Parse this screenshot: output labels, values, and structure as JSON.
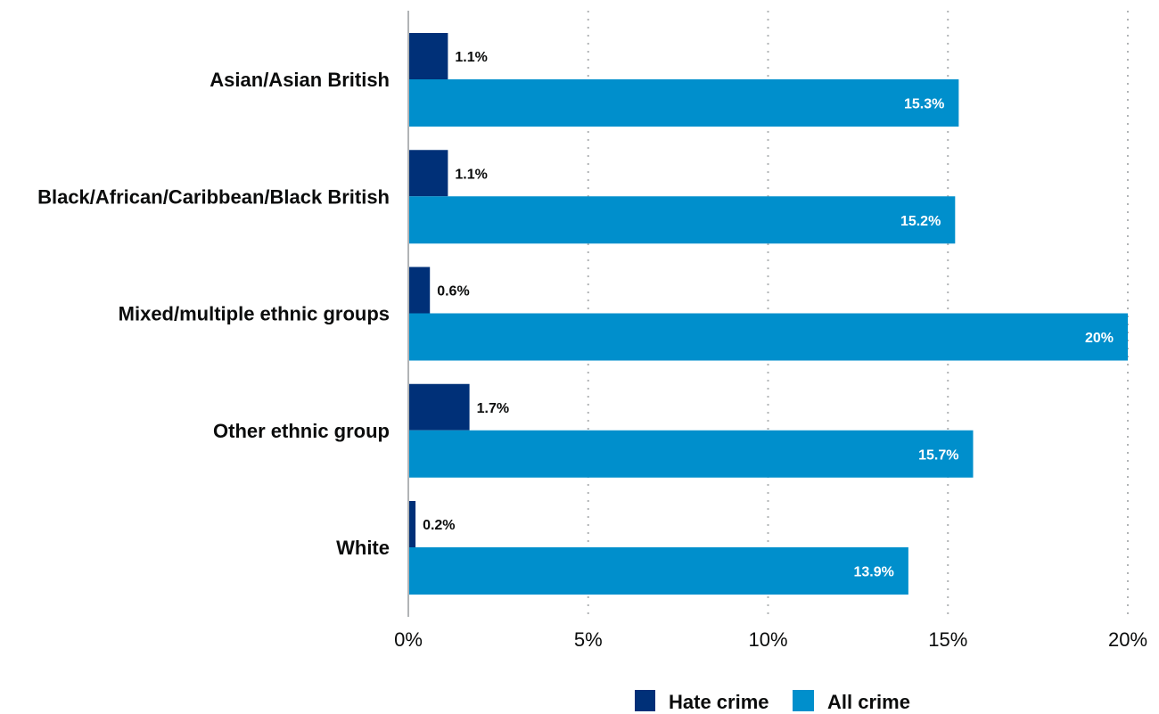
{
  "chart_data": {
    "type": "bar",
    "orientation": "horizontal",
    "categories": [
      "Asian/Asian British",
      "Black/African/Caribbean/Black British",
      "Mixed/multiple ethnic groups",
      "Other ethnic group",
      "White"
    ],
    "series": [
      {
        "name": "Hate crime",
        "color": "#003078",
        "values": [
          1.1,
          1.1,
          0.6,
          1.7,
          0.2
        ],
        "labels": [
          "1.1%",
          "1.1%",
          "0.6%",
          "1.7%",
          "0.2%"
        ]
      },
      {
        "name": "All crime",
        "color": "#008fcc",
        "values": [
          15.3,
          15.2,
          20,
          15.7,
          13.9
        ],
        "labels": [
          "15.3%",
          "15.2%",
          "20%",
          "15.7%",
          "13.9%"
        ]
      }
    ],
    "xlim": [
      0,
      20
    ],
    "xticks": [
      0,
      5,
      10,
      15,
      20
    ],
    "xtick_labels": [
      "0%",
      "5%",
      "10%",
      "15%",
      "20%"
    ],
    "grid": "vertical dotted",
    "legend_position": "bottom"
  }
}
